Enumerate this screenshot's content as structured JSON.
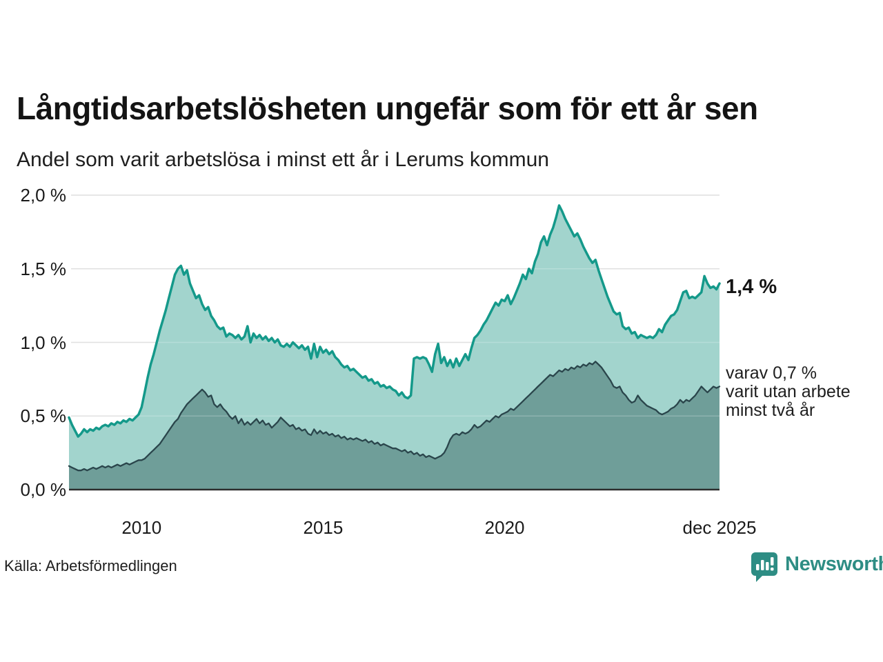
{
  "title": "Långtidsarbetslösheten ungefär som för ett år sen",
  "subtitle": "Andel som varit arbetslösa i minst ett år i Lerums kommun",
  "source": "Källa: Arbetsförmedlingen",
  "branding": {
    "name": "Newsworthy",
    "color": "#2e8d84",
    "logo_icon": "speech-bubble-bar-chart-icon"
  },
  "annotations": {
    "latest_value": "1,4 %",
    "secondary": [
      "varav 0,7 %",
      "varit utan arbete",
      "minst två år"
    ]
  },
  "chart_data": {
    "type": "area",
    "title": "Långtidsarbetslösheten ungefär som för ett år sen",
    "subtitle": "Andel som varit arbetslösa i minst ett år i Lerums kommun",
    "frequency": "monthly",
    "start": "2008-01",
    "end": "2025-12",
    "ylim": [
      0,
      2.0
    ],
    "grid": true,
    "grid_color": "#d8d8d8",
    "axis_color": "#2d2d2d",
    "y_ticks": [
      {
        "label": "2,0 %",
        "value": 2.0
      },
      {
        "label": "1,5 %",
        "value": 1.5
      },
      {
        "label": "1,0 %",
        "value": 1.0
      },
      {
        "label": "0,5 %",
        "value": 0.5
      },
      {
        "label": "0,0 %",
        "value": 0.0
      }
    ],
    "x_ticks": [
      {
        "label": "2010",
        "index": 24
      },
      {
        "label": "2015",
        "index": 84
      },
      {
        "label": "2020",
        "index": 144
      },
      {
        "label": "dec 2025",
        "index": 215
      }
    ],
    "series": [
      {
        "name": "Arbetslösa minst ett år",
        "line_color": "#14998a",
        "fill_color": "#a2d4cd",
        "line_width": 3.5,
        "end_label": "1,4 %",
        "values": [
          0.49,
          0.44,
          0.4,
          0.36,
          0.38,
          0.41,
          0.39,
          0.41,
          0.4,
          0.42,
          0.41,
          0.43,
          0.44,
          0.43,
          0.45,
          0.44,
          0.46,
          0.45,
          0.47,
          0.46,
          0.48,
          0.47,
          0.49,
          0.51,
          0.56,
          0.66,
          0.76,
          0.85,
          0.92,
          1.0,
          1.08,
          1.15,
          1.22,
          1.3,
          1.38,
          1.46,
          1.5,
          1.52,
          1.46,
          1.49,
          1.4,
          1.35,
          1.3,
          1.32,
          1.26,
          1.22,
          1.24,
          1.18,
          1.15,
          1.11,
          1.09,
          1.1,
          1.04,
          1.06,
          1.05,
          1.03,
          1.05,
          1.02,
          1.04,
          1.11,
          1.0,
          1.06,
          1.03,
          1.05,
          1.02,
          1.04,
          1.01,
          1.03,
          1.0,
          1.02,
          0.98,
          0.97,
          0.99,
          0.97,
          1.0,
          0.98,
          0.96,
          0.98,
          0.95,
          0.97,
          0.89,
          0.99,
          0.9,
          0.97,
          0.93,
          0.95,
          0.92,
          0.94,
          0.9,
          0.88,
          0.85,
          0.83,
          0.84,
          0.81,
          0.82,
          0.8,
          0.78,
          0.76,
          0.77,
          0.74,
          0.75,
          0.72,
          0.73,
          0.7,
          0.71,
          0.69,
          0.7,
          0.68,
          0.67,
          0.64,
          0.66,
          0.63,
          0.62,
          0.64,
          0.89,
          0.9,
          0.89,
          0.9,
          0.89,
          0.85,
          0.8,
          0.92,
          0.99,
          0.86,
          0.9,
          0.84,
          0.88,
          0.83,
          0.89,
          0.84,
          0.88,
          0.92,
          0.88,
          0.96,
          1.03,
          1.05,
          1.08,
          1.12,
          1.15,
          1.19,
          1.23,
          1.27,
          1.25,
          1.29,
          1.28,
          1.32,
          1.26,
          1.3,
          1.35,
          1.4,
          1.46,
          1.43,
          1.5,
          1.47,
          1.55,
          1.6,
          1.68,
          1.72,
          1.66,
          1.73,
          1.78,
          1.85,
          1.93,
          1.89,
          1.84,
          1.8,
          1.76,
          1.72,
          1.74,
          1.7,
          1.65,
          1.61,
          1.57,
          1.54,
          1.56,
          1.49,
          1.43,
          1.37,
          1.31,
          1.26,
          1.21,
          1.19,
          1.2,
          1.11,
          1.09,
          1.1,
          1.06,
          1.07,
          1.03,
          1.05,
          1.04,
          1.03,
          1.04,
          1.03,
          1.05,
          1.09,
          1.07,
          1.12,
          1.15,
          1.18,
          1.19,
          1.22,
          1.28,
          1.34,
          1.35,
          1.3,
          1.31,
          1.3,
          1.32,
          1.34,
          1.45,
          1.4,
          1.37,
          1.38,
          1.36,
          1.4
        ]
      },
      {
        "name": "Utan arbete minst två år",
        "line_color": "#2a454b",
        "fill_color": "#6f9e99",
        "line_width": 2.3,
        "end_label": "varav 0,7 % varit utan arbete minst två år",
        "values": [
          0.16,
          0.15,
          0.14,
          0.13,
          0.13,
          0.14,
          0.13,
          0.14,
          0.15,
          0.14,
          0.15,
          0.16,
          0.15,
          0.16,
          0.15,
          0.16,
          0.17,
          0.16,
          0.17,
          0.18,
          0.17,
          0.18,
          0.19,
          0.2,
          0.2,
          0.21,
          0.23,
          0.25,
          0.27,
          0.29,
          0.31,
          0.34,
          0.37,
          0.4,
          0.43,
          0.46,
          0.48,
          0.52,
          0.55,
          0.58,
          0.6,
          0.62,
          0.64,
          0.66,
          0.68,
          0.66,
          0.63,
          0.64,
          0.58,
          0.56,
          0.58,
          0.55,
          0.53,
          0.5,
          0.48,
          0.5,
          0.45,
          0.48,
          0.44,
          0.46,
          0.44,
          0.46,
          0.48,
          0.45,
          0.47,
          0.44,
          0.45,
          0.42,
          0.44,
          0.46,
          0.49,
          0.47,
          0.45,
          0.43,
          0.44,
          0.41,
          0.42,
          0.4,
          0.41,
          0.38,
          0.37,
          0.41,
          0.38,
          0.4,
          0.38,
          0.39,
          0.37,
          0.38,
          0.36,
          0.37,
          0.35,
          0.36,
          0.34,
          0.35,
          0.34,
          0.35,
          0.34,
          0.33,
          0.34,
          0.32,
          0.33,
          0.31,
          0.32,
          0.3,
          0.31,
          0.3,
          0.29,
          0.28,
          0.28,
          0.27,
          0.26,
          0.27,
          0.25,
          0.26,
          0.24,
          0.25,
          0.23,
          0.24,
          0.22,
          0.23,
          0.22,
          0.21,
          0.22,
          0.23,
          0.25,
          0.29,
          0.34,
          0.37,
          0.38,
          0.37,
          0.39,
          0.38,
          0.39,
          0.41,
          0.44,
          0.42,
          0.43,
          0.45,
          0.47,
          0.46,
          0.48,
          0.5,
          0.49,
          0.51,
          0.52,
          0.53,
          0.55,
          0.54,
          0.56,
          0.58,
          0.6,
          0.62,
          0.64,
          0.66,
          0.68,
          0.7,
          0.72,
          0.74,
          0.76,
          0.78,
          0.77,
          0.79,
          0.81,
          0.8,
          0.82,
          0.81,
          0.83,
          0.82,
          0.84,
          0.83,
          0.85,
          0.84,
          0.86,
          0.85,
          0.87,
          0.85,
          0.83,
          0.8,
          0.77,
          0.74,
          0.7,
          0.69,
          0.7,
          0.66,
          0.64,
          0.61,
          0.59,
          0.6,
          0.64,
          0.61,
          0.59,
          0.57,
          0.56,
          0.55,
          0.54,
          0.52,
          0.51,
          0.52,
          0.53,
          0.55,
          0.56,
          0.58,
          0.61,
          0.59,
          0.61,
          0.6,
          0.62,
          0.64,
          0.67,
          0.7,
          0.68,
          0.66,
          0.68,
          0.7,
          0.69,
          0.7
        ]
      }
    ]
  }
}
